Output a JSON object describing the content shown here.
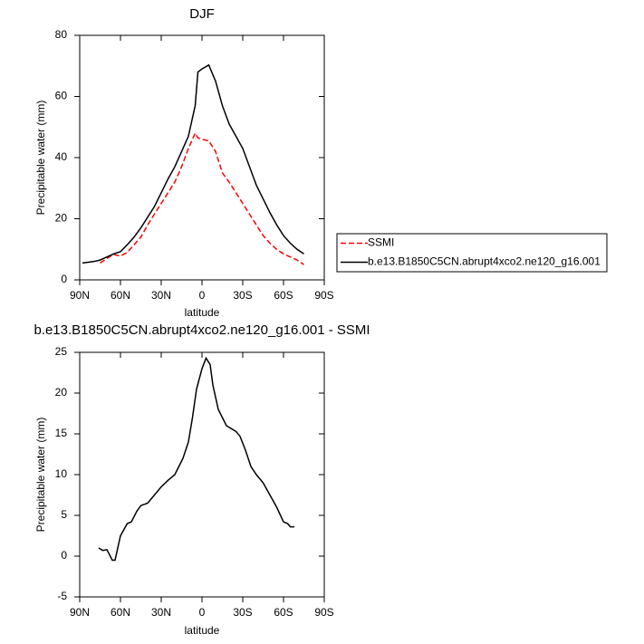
{
  "chart_data": [
    {
      "type": "line",
      "title": "DJF",
      "xlabel": "latitude",
      "ylabel": "Precipitable water (mm)",
      "x": [
        88,
        80,
        75,
        70,
        65,
        60,
        55,
        50,
        45,
        40,
        35,
        30,
        25,
        20,
        15,
        10,
        5,
        3,
        0,
        -5,
        -10,
        -15,
        -20,
        -25,
        -30,
        -35,
        -40,
        -45,
        -50,
        -55,
        -60,
        -65,
        -70,
        -75
      ],
      "series": [
        {
          "name": "SSMI",
          "color": "#ff0000",
          "dash": "dashed",
          "values": [
            null,
            null,
            5.5,
            7,
            8.3,
            7.8,
            9,
            11.5,
            14,
            18,
            21.5,
            25,
            28.5,
            32,
            37,
            43,
            48,
            46.5,
            46,
            45.5,
            42,
            35,
            32,
            28.5,
            25,
            21.5,
            18,
            14.5,
            12,
            10,
            8.5,
            7.5,
            6.5,
            5
          ]
        },
        {
          "name": "b.e13.B1850C5CN.abrupt4xco2.ne120_g16.001",
          "color": "#000000",
          "dash": "solid",
          "values": [
            5.5,
            6,
            6.5,
            7.5,
            8.5,
            9.2,
            11.5,
            14,
            17,
            20.5,
            24,
            28.5,
            33,
            37,
            42,
            47,
            57,
            68,
            69,
            70.3,
            65,
            57,
            51,
            47,
            43,
            37,
            31,
            26.5,
            22,
            18,
            14.5,
            12,
            10,
            8.5
          ]
        }
      ],
      "xlim": [
        90,
        -90
      ],
      "xticks": [
        {
          "value": 90,
          "label": "90N"
        },
        {
          "value": 60,
          "label": "60N"
        },
        {
          "value": 30,
          "label": "30N"
        },
        0,
        {
          "value": -30,
          "label": "30S"
        },
        {
          "value": -60,
          "label": "60S"
        },
        {
          "value": -90,
          "label": "90S"
        }
      ],
      "ylim": [
        0,
        80
      ],
      "yticks": [
        0,
        20,
        40,
        60,
        80
      ],
      "legend": "right"
    },
    {
      "type": "line",
      "title": "b.e13.B1850C5CN.abrupt4xco2.ne120_g16.001 - SSMI",
      "xlabel": "latitude",
      "ylabel": "Precipitable water (mm)",
      "x": [
        76,
        73,
        70,
        66,
        64,
        60,
        55,
        52,
        48,
        45,
        40,
        35,
        30,
        25,
        20,
        17,
        14,
        10,
        7,
        4,
        0,
        -3,
        -6,
        -8,
        -12,
        -15,
        -18,
        -25,
        -28,
        -32,
        -36,
        -40,
        -45,
        -50,
        -55,
        -60,
        -63,
        -65,
        -68
      ],
      "values": [
        1.0,
        0.7,
        0.8,
        -0.5,
        -0.5,
        2.5,
        4,
        4.2,
        5.5,
        6.2,
        6.5,
        7.5,
        8.5,
        9.3,
        10,
        11,
        12,
        14,
        17,
        20.5,
        23,
        24.3,
        23.5,
        21,
        18,
        17,
        16,
        15.3,
        14.7,
        13,
        11,
        10,
        9,
        7.5,
        6,
        4.2,
        4,
        3.6,
        3.6
      ],
      "color": "#000000",
      "xlim": [
        90,
        -90
      ],
      "xticks": [
        {
          "value": 90,
          "label": "90N"
        },
        {
          "value": 60,
          "label": "60N"
        },
        {
          "value": 30,
          "label": "30N"
        },
        0,
        {
          "value": -30,
          "label": "30S"
        },
        {
          "value": -60,
          "label": "60S"
        },
        {
          "value": -90,
          "label": "90S"
        }
      ],
      "ylim": [
        -5,
        25
      ],
      "yticks": [
        -5,
        0,
        5,
        10,
        15,
        20,
        25
      ]
    }
  ]
}
